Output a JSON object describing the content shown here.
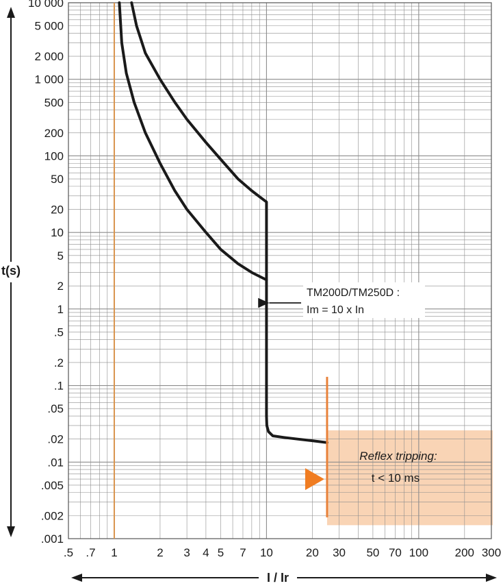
{
  "chart_data": {
    "type": "line",
    "title": "",
    "xlabel": "I / Ir",
    "ylabel": "t(s)",
    "xscale": "log",
    "yscale": "log",
    "xlim": [
      0.5,
      300
    ],
    "ylim": [
      0.001,
      10000
    ],
    "grid": true,
    "x_ticks": [
      {
        "value": 0.5,
        "label": ".5"
      },
      {
        "value": 0.7,
        "label": ".7"
      },
      {
        "value": 1,
        "label": "1"
      },
      {
        "value": 2,
        "label": "2"
      },
      {
        "value": 3,
        "label": "3"
      },
      {
        "value": 4,
        "label": "4"
      },
      {
        "value": 5,
        "label": "5"
      },
      {
        "value": 7,
        "label": "7"
      },
      {
        "value": 10,
        "label": "10"
      },
      {
        "value": 20,
        "label": "20"
      },
      {
        "value": 30,
        "label": "30"
      },
      {
        "value": 50,
        "label": "50"
      },
      {
        "value": 70,
        "label": "70"
      },
      {
        "value": 100,
        "label": "100"
      },
      {
        "value": 200,
        "label": "200"
      },
      {
        "value": 300,
        "label": "300"
      }
    ],
    "y_ticks": [
      {
        "value": 0.001,
        "label": ".001"
      },
      {
        "value": 0.002,
        "label": ".002"
      },
      {
        "value": 0.005,
        "label": ".005"
      },
      {
        "value": 0.01,
        "label": ".01"
      },
      {
        "value": 0.02,
        "label": ".02"
      },
      {
        "value": 0.05,
        "label": ".05"
      },
      {
        "value": 0.1,
        "label": ".1"
      },
      {
        "value": 0.2,
        "label": ".2"
      },
      {
        "value": 0.5,
        "label": ".5"
      },
      {
        "value": 1,
        "label": "1"
      },
      {
        "value": 2,
        "label": "2"
      },
      {
        "value": 5,
        "label": "5"
      },
      {
        "value": 10,
        "label": "10"
      },
      {
        "value": 20,
        "label": "20"
      },
      {
        "value": 50,
        "label": "50"
      },
      {
        "value": 100,
        "label": "100"
      },
      {
        "value": 200,
        "label": "200"
      },
      {
        "value": 500,
        "label": "500"
      },
      {
        "value": 1000,
        "label": "1 000"
      },
      {
        "value": 2000,
        "label": "2 000"
      },
      {
        "value": 5000,
        "label": "5 000"
      },
      {
        "value": 10000,
        "label": "10 000"
      }
    ],
    "reference_line_x": 1,
    "series": [
      {
        "x": [
          1.08,
          1.12,
          1.2,
          1.35,
          1.6,
          2.0,
          2.5,
          3.0,
          4.0,
          5.0,
          6.5,
          8.0,
          10.0,
          10.0,
          10.0,
          10.05,
          10.3,
          11.0,
          13.0,
          16.0,
          20.0,
          25.0
        ],
        "y": [
          10000,
          3000,
          1200,
          500,
          200,
          80,
          35,
          20,
          10,
          6,
          3.9,
          3.0,
          2.4,
          0.1,
          0.04,
          0.03,
          0.025,
          0.022,
          0.021,
          0.02,
          0.019,
          0.018
        ]
      },
      {
        "x": [
          1.3,
          1.4,
          1.6,
          2.0,
          2.5,
          3.0,
          4.0,
          5.0,
          6.5,
          8.0,
          10.0,
          10.0
        ],
        "y": [
          10000,
          5000,
          2200,
          1000,
          500,
          300,
          150,
          90,
          50,
          35,
          25,
          2.4
        ]
      }
    ],
    "annotations": {
      "trip_label_line1": "TM200D/TM250D :",
      "trip_label_line2": "Im = 10 x In",
      "trip_arrow_target": {
        "x": 10,
        "y": 1.2
      },
      "reflex_title": "Reflex tripping:",
      "reflex_text": "t < 10 ms",
      "reflex_line_x": 25,
      "reflex_line_ylim": [
        0.0019,
        0.13
      ],
      "reflex_box_xlim": [
        25,
        300
      ],
      "reflex_box_ylim": [
        0.0015,
        0.026
      ]
    }
  },
  "colors": {
    "background": "#ffffff",
    "grid": "#8c8c8c",
    "curve": "#1a1a1a",
    "reference_line": "#d9944d",
    "reflex_line": "#e8823a",
    "reflex_box": "#f9d4b5",
    "reflex_arrow": "#f07d22",
    "text": "#1a1a1a"
  }
}
